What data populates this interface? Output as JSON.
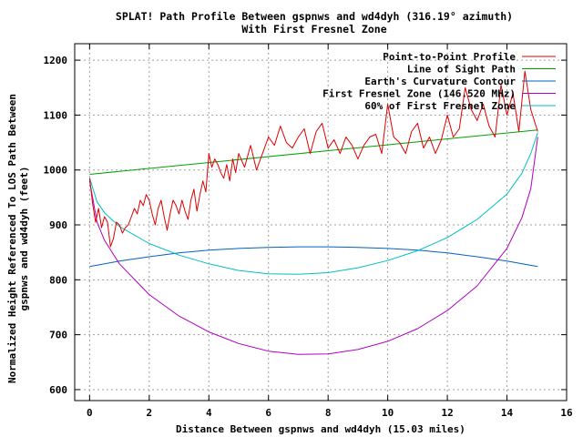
{
  "chart_data": {
    "type": "line",
    "title": "SPLAT! Path Profile Between gspnws and wd4dyh (316.19° azimuth)",
    "subtitle": "With First Fresnel Zone",
    "xlabel": "Distance Between gspnws and wd4dyh (15.03 miles)",
    "ylabel_line1": "Normalized Height Referenced To LOS Path Between",
    "ylabel_line2": "gspnws and wd4dyh (feet)",
    "xlim": [
      -0.5,
      16
    ],
    "ylim": [
      580,
      1230
    ],
    "x_ticks": [
      "0",
      "2",
      "4",
      "6",
      "8",
      "10",
      "12",
      "14",
      "16"
    ],
    "y_ticks": [
      "600",
      "700",
      "800",
      "900",
      "1000",
      "1100",
      "1200"
    ],
    "grid": true,
    "legend_position": "top-right",
    "series": [
      {
        "name": "Point-to-Point Profile",
        "color": "#e00000",
        "x": [
          0,
          0.1,
          0.2,
          0.3,
          0.4,
          0.5,
          0.6,
          0.7,
          0.8,
          0.9,
          1.0,
          1.1,
          1.2,
          1.3,
          1.4,
          1.5,
          1.6,
          1.7,
          1.8,
          1.9,
          2.0,
          2.1,
          2.2,
          2.3,
          2.4,
          2.5,
          2.6,
          2.7,
          2.8,
          2.9,
          3.0,
          3.1,
          3.2,
          3.3,
          3.4,
          3.5,
          3.6,
          3.7,
          3.8,
          3.9,
          4.0,
          4.1,
          4.2,
          4.3,
          4.4,
          4.5,
          4.6,
          4.7,
          4.8,
          4.9,
          5.0,
          5.2,
          5.4,
          5.6,
          5.8,
          6.0,
          6.2,
          6.4,
          6.6,
          6.8,
          7.0,
          7.2,
          7.4,
          7.6,
          7.8,
          8.0,
          8.2,
          8.4,
          8.6,
          8.8,
          9.0,
          9.2,
          9.4,
          9.6,
          9.8,
          10.0,
          10.2,
          10.4,
          10.6,
          10.8,
          11.0,
          11.2,
          11.4,
          11.6,
          11.8,
          12.0,
          12.2,
          12.4,
          12.6,
          12.8,
          13.0,
          13.2,
          13.4,
          13.6,
          13.8,
          14.0,
          14.2,
          14.4,
          14.6,
          14.8,
          15.03
        ],
        "y": [
          985,
          940,
          905,
          930,
          895,
          915,
          905,
          860,
          875,
          905,
          900,
          885,
          895,
          900,
          915,
          930,
          920,
          945,
          935,
          955,
          945,
          920,
          900,
          930,
          945,
          915,
          890,
          920,
          945,
          935,
          920,
          945,
          925,
          910,
          945,
          965,
          925,
          955,
          980,
          960,
          1030,
          1005,
          1020,
          1010,
          995,
          985,
          1010,
          980,
          1020,
          995,
          1030,
          1005,
          1045,
          1000,
          1030,
          1060,
          1045,
          1080,
          1050,
          1040,
          1060,
          1075,
          1030,
          1070,
          1085,
          1040,
          1055,
          1030,
          1060,
          1045,
          1020,
          1045,
          1060,
          1065,
          1030,
          1120,
          1060,
          1050,
          1030,
          1070,
          1085,
          1040,
          1060,
          1030,
          1055,
          1100,
          1060,
          1075,
          1150,
          1110,
          1090,
          1120,
          1080,
          1060,
          1155,
          1100,
          1140,
          1070,
          1180,
          1110,
          1070
        ]
      },
      {
        "name": "Line of Sight Path",
        "color": "#00a000",
        "x": [
          0,
          15.03
        ],
        "y": [
          992,
          1073
        ]
      },
      {
        "name": "Earth's Curvature Contour",
        "color": "#0060c0",
        "x": [
          0,
          1,
          2,
          3,
          4,
          5,
          6,
          7,
          7.5,
          8,
          9,
          10,
          11,
          12,
          13,
          14,
          15.03
        ],
        "y": [
          824,
          834,
          842,
          849,
          854,
          857,
          859,
          860,
          860,
          860,
          859,
          857,
          854,
          849,
          842,
          834,
          824
        ]
      },
      {
        "name": "First Fresnel Zone (146.520 MHz)",
        "color": "#b000c0",
        "x": [
          0,
          0.25,
          0.5,
          1,
          2,
          3,
          4,
          5,
          6,
          7,
          8,
          9,
          10,
          11,
          12,
          13,
          14,
          14.5,
          14.8,
          15.03
        ],
        "y": [
          980,
          905,
          872,
          829,
          773,
          734,
          705,
          684,
          670,
          664,
          665,
          673,
          688,
          711,
          744,
          789,
          857,
          913,
          966,
          1060
        ]
      },
      {
        "name": "60% of First Fresnel Zone",
        "color": "#00c0c0",
        "x": [
          0,
          0.25,
          0.5,
          1,
          2,
          3,
          4,
          5,
          6,
          7,
          8,
          9,
          10,
          11,
          12,
          13,
          14,
          14.5,
          14.8,
          15.03
        ],
        "y": [
          986,
          942,
          922,
          897,
          866,
          845,
          829,
          817,
          811,
          810,
          813,
          822,
          835,
          853,
          877,
          910,
          956,
          994,
          1030,
          1068
        ]
      }
    ]
  }
}
